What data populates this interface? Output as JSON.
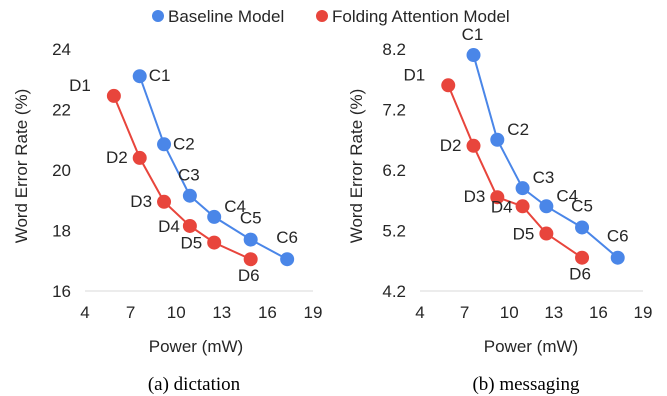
{
  "legend": {
    "placement": "top-center",
    "entries": [
      {
        "label": "Baseline Model",
        "color": "#4A86E8"
      },
      {
        "label": "Folding Attention Model",
        "color": "#E8453C"
      }
    ]
  },
  "chart_data": [
    {
      "type": "scatter",
      "caption": "(a) dictation",
      "xlabel": "Power (mW)",
      "ylabel": "Word Error Rate (%)",
      "xlim": [
        4,
        19
      ],
      "ylim": [
        16,
        24
      ],
      "xticks": [
        "4",
        "7",
        "10",
        "13",
        "16",
        "19"
      ],
      "yticks": [
        "16",
        "18",
        "20",
        "22",
        "24"
      ],
      "grid": false,
      "lines": true,
      "series": [
        {
          "name": "Baseline Model",
          "color": "#4A86E8",
          "points": [
            {
              "label": "C1",
              "x": 7.6,
              "y": 23.1
            },
            {
              "label": "C2",
              "x": 9.2,
              "y": 20.85
            },
            {
              "label": "C3",
              "x": 10.9,
              "y": 19.15
            },
            {
              "label": "C4",
              "x": 12.5,
              "y": 18.45
            },
            {
              "label": "C5",
              "x": 14.9,
              "y": 17.7
            },
            {
              "label": "C6",
              "x": 17.3,
              "y": 17.05
            }
          ]
        },
        {
          "name": "Folding Attention Model",
          "color": "#E8453C",
          "points": [
            {
              "label": "D1",
              "x": 5.9,
              "y": 22.45
            },
            {
              "label": "D2",
              "x": 7.6,
              "y": 20.4
            },
            {
              "label": "D3",
              "x": 9.2,
              "y": 18.95
            },
            {
              "label": "D4",
              "x": 10.9,
              "y": 18.15
            },
            {
              "label": "D5",
              "x": 12.5,
              "y": 17.6
            },
            {
              "label": "D6",
              "x": 14.9,
              "y": 17.05
            }
          ]
        }
      ]
    },
    {
      "type": "scatter",
      "caption": "(b) messaging",
      "xlabel": "Power (mW)",
      "ylabel": "Word Error Rate (%)",
      "xlim": [
        4,
        19
      ],
      "ylim": [
        4.2,
        8.2
      ],
      "xticks": [
        "4",
        "7",
        "10",
        "13",
        "16",
        "19"
      ],
      "yticks": [
        "4.2",
        "5.2",
        "6.2",
        "7.2",
        "8.2"
      ],
      "grid": false,
      "lines": true,
      "series": [
        {
          "name": "Baseline Model",
          "color": "#4A86E8",
          "points": [
            {
              "label": "C1",
              "x": 7.6,
              "y": 8.1
            },
            {
              "label": "C2",
              "x": 9.2,
              "y": 6.7
            },
            {
              "label": "C3",
              "x": 10.9,
              "y": 5.9
            },
            {
              "label": "C4",
              "x": 12.5,
              "y": 5.6
            },
            {
              "label": "C5",
              "x": 14.9,
              "y": 5.25
            },
            {
              "label": "C6",
              "x": 17.3,
              "y": 4.75
            }
          ]
        },
        {
          "name": "Folding Attention Model",
          "color": "#E8453C",
          "points": [
            {
              "label": "D1",
              "x": 5.9,
              "y": 7.6
            },
            {
              "label": "D2",
              "x": 7.6,
              "y": 6.6
            },
            {
              "label": "D3",
              "x": 9.2,
              "y": 5.75
            },
            {
              "label": "D4",
              "x": 10.9,
              "y": 5.6
            },
            {
              "label": "D5",
              "x": 12.5,
              "y": 5.15
            },
            {
              "label": "D6",
              "x": 14.9,
              "y": 4.75
            }
          ]
        }
      ]
    }
  ]
}
